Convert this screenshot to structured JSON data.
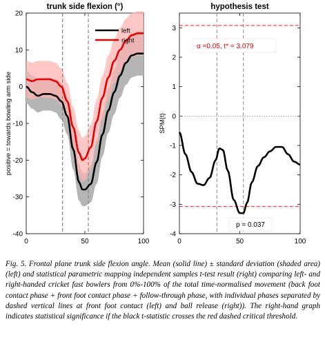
{
  "chart_data": [
    {
      "type": "line",
      "title": "trunk side flexion (°)",
      "xlabel": "",
      "ylabel": "positive = towards bowling arm side",
      "xlim": [
        0,
        100
      ],
      "ylim": [
        -40,
        20
      ],
      "xticks": [
        "0",
        "50",
        "100"
      ],
      "yticks": [
        "20",
        "10",
        "0",
        "-10",
        "-20",
        "-30",
        "-40"
      ],
      "vlines": [
        31,
        53
      ],
      "legend": "top-right",
      "colors": {
        "left": "#000000",
        "right": "#e60000",
        "left_band": "#b5b5b5",
        "right_band": "#ffb3b3"
      },
      "series": [
        {
          "name": "left",
          "x": [
            0,
            5,
            10,
            15,
            20,
            25,
            30,
            35,
            40,
            45,
            48,
            50,
            55,
            60,
            65,
            70,
            75,
            80,
            85,
            90,
            95,
            100
          ],
          "mean": [
            0,
            -1.5,
            -2.5,
            -2,
            -2,
            -2.5,
            -4,
            -8,
            -17,
            -26,
            -28,
            -28,
            -26.5,
            -20.5,
            -13,
            -6.5,
            -1.5,
            3,
            6.5,
            8.5,
            9,
            9
          ],
          "sd": [
            4.5,
            4.5,
            4.5,
            4.5,
            4.5,
            4.5,
            5,
            5,
            5.5,
            5,
            4.5,
            4.5,
            5,
            6,
            6,
            6,
            6,
            6,
            6,
            6,
            6,
            6
          ]
        },
        {
          "name": "right",
          "x": [
            0,
            5,
            10,
            15,
            20,
            25,
            30,
            35,
            40,
            45,
            48,
            50,
            55,
            60,
            65,
            70,
            75,
            80,
            85,
            90,
            95,
            100
          ],
          "mean": [
            2,
            1.5,
            2,
            2,
            2,
            1.5,
            0,
            -4,
            -11,
            -18,
            -20,
            -19.5,
            -16.5,
            -9.5,
            -3,
            2.5,
            7,
            10,
            12.5,
            14,
            14.5,
            14.5
          ],
          "sd": [
            5,
            5,
            5,
            5,
            5,
            5,
            5,
            5,
            5.5,
            6,
            6,
            6,
            6,
            6,
            6,
            6,
            6,
            6,
            6,
            6,
            6,
            6
          ]
        }
      ]
    },
    {
      "type": "line",
      "title": "hypothesis test",
      "xlabel": "",
      "ylabel": "SPM{t}",
      "xlim": [
        0,
        100
      ],
      "ylim": [
        -4,
        3.5
      ],
      "xticks": [
        "0",
        "50",
        "100"
      ],
      "yticks": [
        "3",
        "2",
        "1",
        "0",
        "-1",
        "-2",
        "-3",
        "-4"
      ],
      "vlines": [
        31,
        53
      ],
      "critical_threshold": 3.079,
      "alpha_text": "α  =0.05,      t* = 3.079",
      "p_text": "p = 0.037",
      "colors": {
        "t": "#000000",
        "threshold": "#e60000"
      },
      "series": [
        {
          "name": "",
          "x": [
            0,
            5,
            10,
            15,
            20,
            25,
            30,
            33,
            36,
            40,
            45,
            50,
            53,
            56,
            60,
            65,
            70,
            75,
            80,
            85,
            90,
            95,
            100
          ],
          "values": [
            -0.55,
            -1.3,
            -1.9,
            -2.3,
            -2.35,
            -2.1,
            -1.5,
            -1.1,
            -1.15,
            -1.85,
            -2.85,
            -3.3,
            -3.3,
            -2.95,
            -2.25,
            -1.7,
            -1.4,
            -1.2,
            -1.05,
            -1.05,
            -1.3,
            -1.55,
            -1.65
          ]
        }
      ]
    }
  ],
  "caption": {
    "label": "Fig. 5.",
    "text": "Frontal plane trunk side flexion angle. Mean (solid line) ± standard deviation (shaded area) (left) and statistical parametric mapping independent samples t-test result (right) comparing left- and right-handed cricket fast bowlers from 0%-100% of the total time-normalised movement (back foot contact phase + front foot contact phase + follow-through phase, with individual phases separated by dashed vertical lines at front foot contact (left) and ball release (right)). The right-hand graph indicates statistical significance if the black t-statistic crosses the red dashed critical threshold."
  }
}
